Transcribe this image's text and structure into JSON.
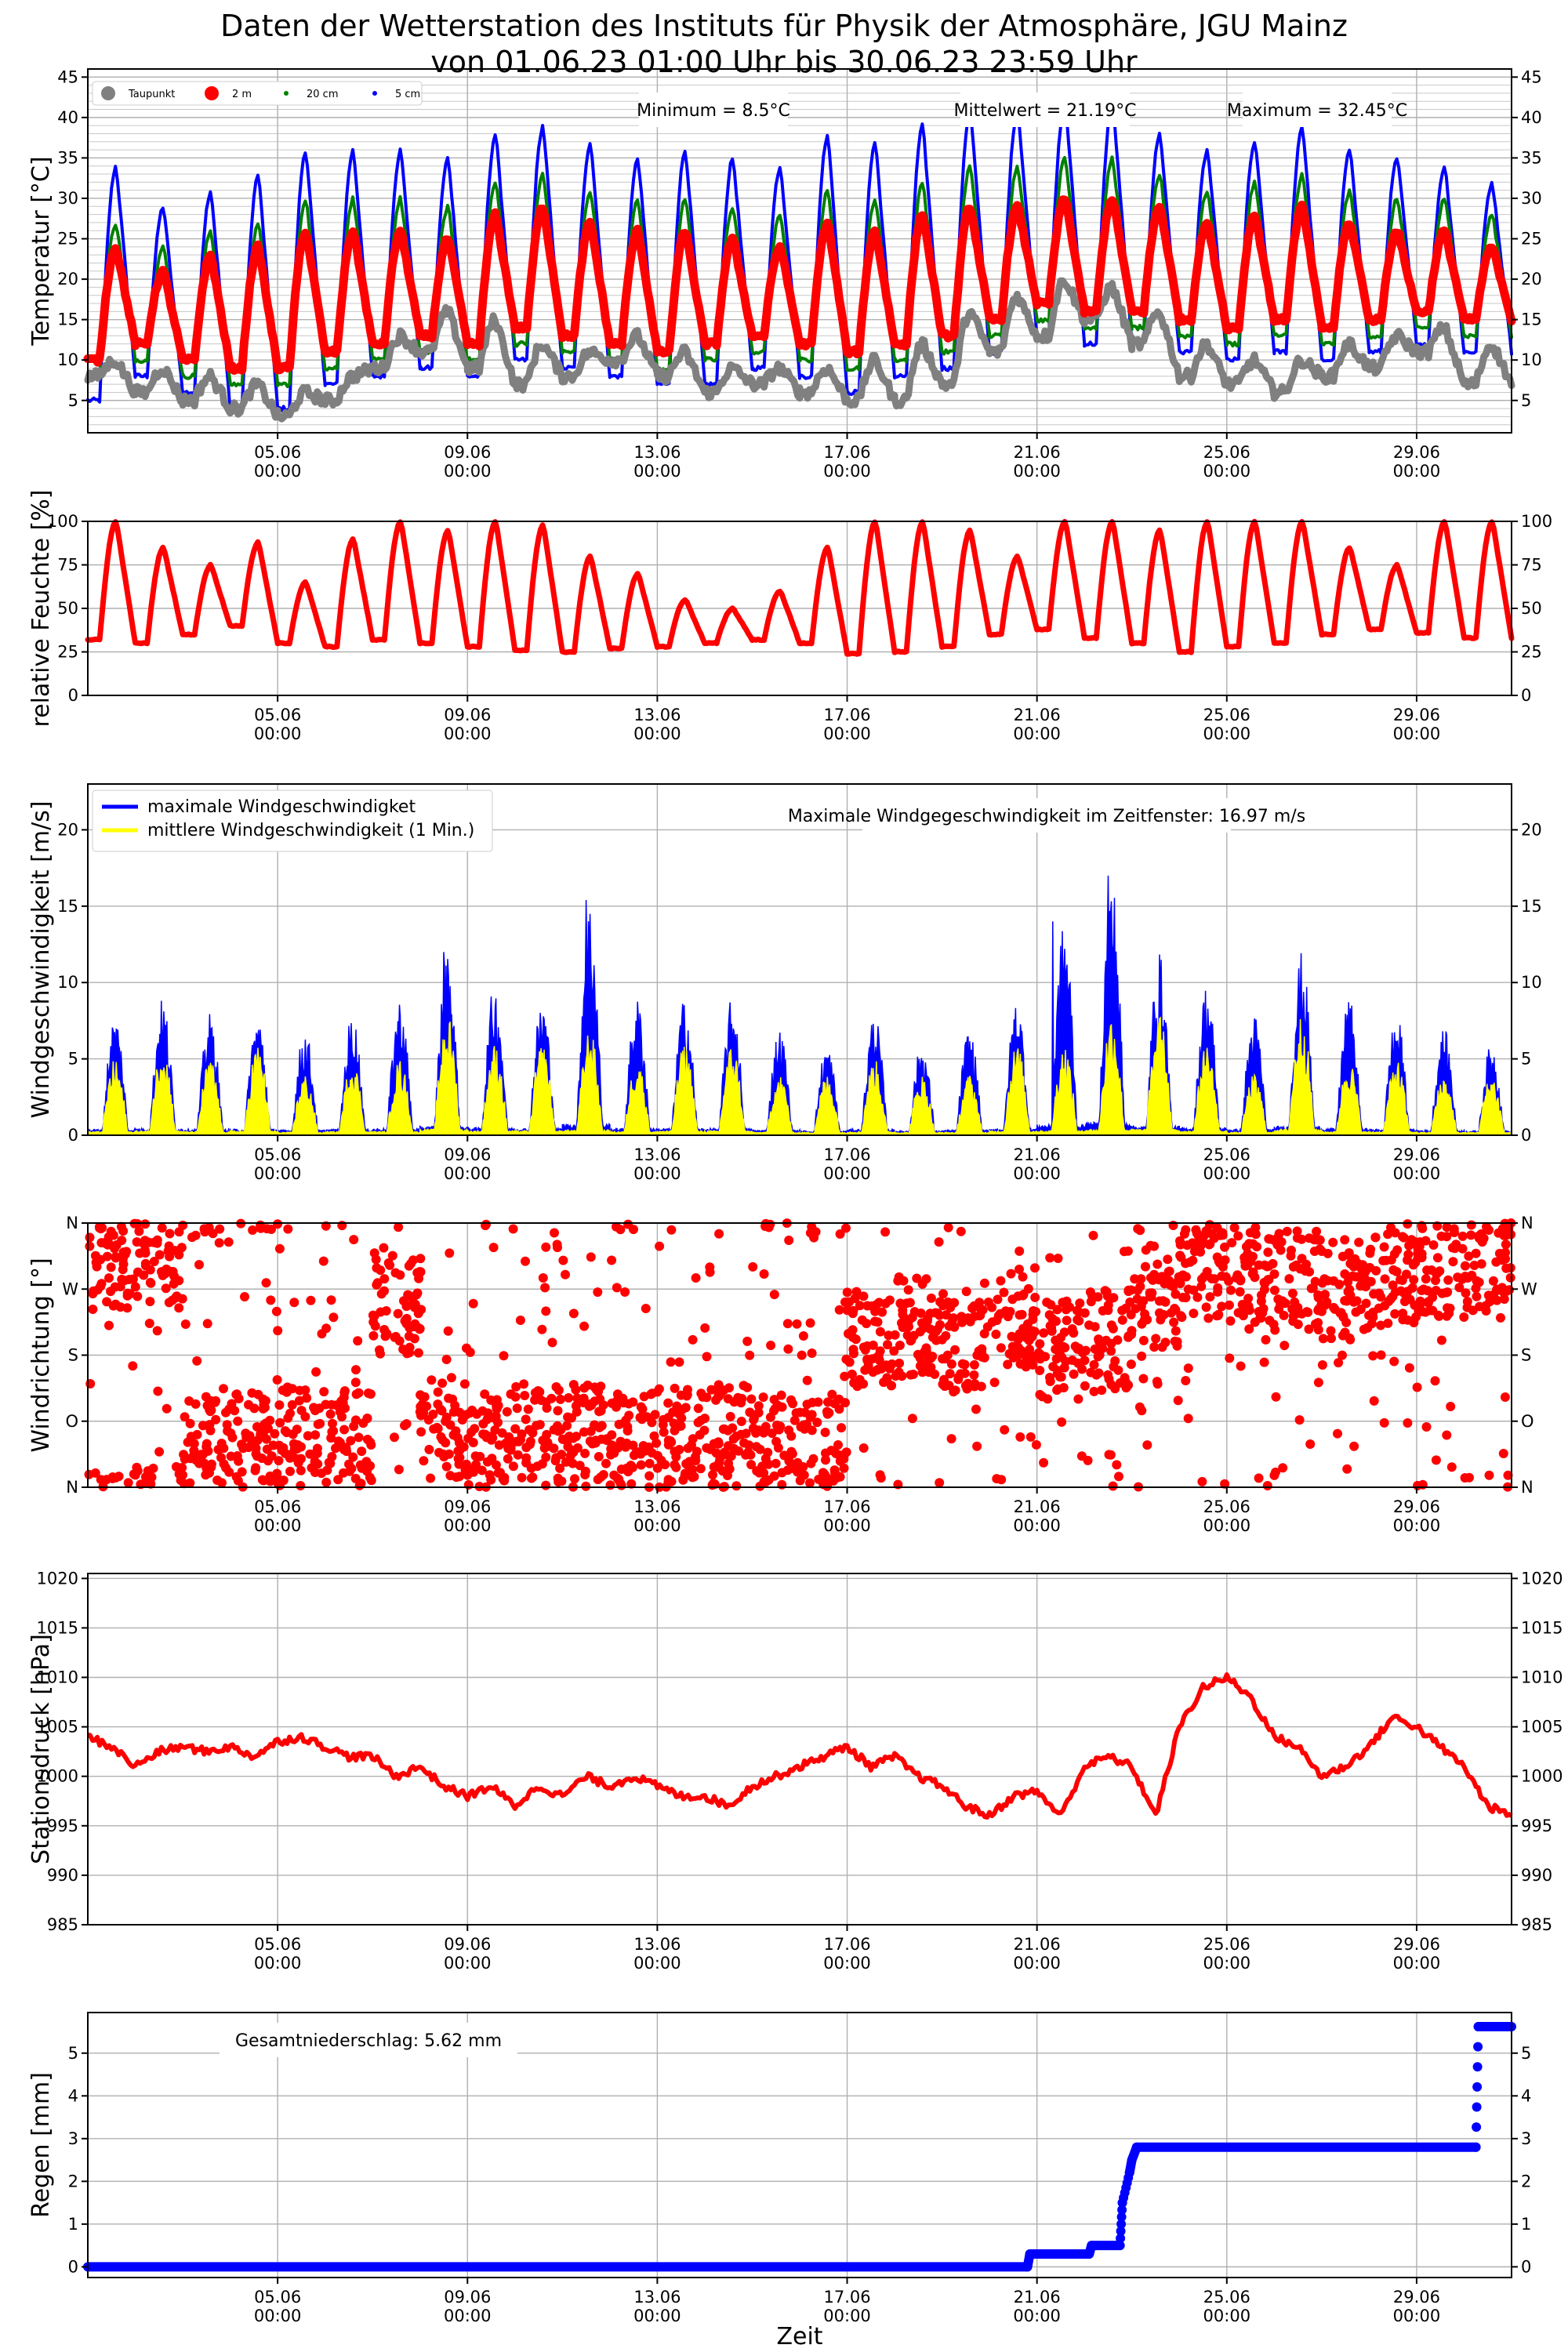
{
  "title": {
    "line1": "Daten der Wetterstation des Instituts für Physik der Atmosphäre, JGU Mainz",
    "line2": "von 01.06.23 01:00 Uhr bis 30.06.23 23:59 Uhr"
  },
  "x_axis": {
    "label": "Zeit",
    "start_day": 1,
    "end_day": 31,
    "ticks": [
      {
        "day": 5,
        "line1": "05.06",
        "line2": "00:00"
      },
      {
        "day": 9,
        "line1": "09.06",
        "line2": "00:00"
      },
      {
        "day": 13,
        "line1": "13.06",
        "line2": "00:00"
      },
      {
        "day": 17,
        "line1": "17.06",
        "line2": "00:00"
      },
      {
        "day": 21,
        "line1": "21.06",
        "line2": "00:00"
      },
      {
        "day": 25,
        "line1": "25.06",
        "line2": "00:00"
      },
      {
        "day": 29,
        "line1": "29.06",
        "line2": "00:00"
      }
    ]
  },
  "chart_data": [
    {
      "id": "temperature",
      "type": "scatter",
      "ylabel": "Temperatur [°C]",
      "ylim": [
        1,
        46
      ],
      "yticks": [
        5,
        10,
        15,
        20,
        25,
        30,
        35,
        40,
        45
      ],
      "minor_grid_step": 1,
      "legend": {
        "position": "top-left",
        "entries": [
          {
            "name": "Taupunkt",
            "color": "#808080",
            "size": "large"
          },
          {
            "name": "2 m",
            "color": "#ff0000",
            "size": "large"
          },
          {
            "name": "20 cm",
            "color": "#008000",
            "size": "small"
          },
          {
            "name": "5 cm",
            "color": "#0000ff",
            "size": "small"
          }
        ]
      },
      "annotations": [
        "Minimum = 8.5°C",
        "Mittelwert = 21.19°C",
        "Maximum = 32.45°C"
      ],
      "series": [
        {
          "name": "Taupunkt",
          "color": "#808080",
          "daily_min": [
            8,
            6,
            5,
            4,
            3,
            5,
            9,
            11,
            9,
            7,
            8,
            10,
            8,
            6,
            7,
            6,
            5,
            5,
            7,
            11,
            13,
            15,
            12,
            8,
            7,
            6,
            8,
            9,
            11,
            7
          ],
          "daily_max": [
            10,
            9,
            8,
            7,
            6,
            8,
            13,
            16,
            15,
            12,
            11,
            13,
            11,
            9,
            9,
            9,
            10,
            12,
            16,
            18,
            20,
            19,
            16,
            12,
            10,
            10,
            12,
            13,
            14,
            12
          ]
        },
        {
          "name": "2 m",
          "color": "#ff0000",
          "daily_min": [
            10,
            12,
            10,
            9,
            9,
            11,
            12,
            13,
            12,
            14,
            13,
            12,
            11,
            12,
            13,
            12,
            11,
            12,
            13,
            15,
            17,
            16,
            16,
            15,
            14,
            15,
            14,
            15,
            16,
            15
          ],
          "daily_max": [
            24,
            21,
            23,
            24,
            26,
            26,
            26,
            25,
            28,
            29,
            27,
            26,
            26,
            25,
            24,
            27,
            26,
            28,
            29,
            29,
            30,
            30,
            29,
            27,
            28,
            29,
            27,
            26,
            26,
            24
          ]
        },
        {
          "name": "20 cm",
          "color": "#008000",
          "daily_min": [
            8,
            10,
            8,
            7,
            7,
            9,
            10,
            11,
            10,
            12,
            11,
            10,
            9,
            10,
            11,
            10,
            9,
            10,
            11,
            13,
            15,
            14,
            14,
            13,
            12,
            13,
            12,
            13,
            14,
            13
          ],
          "daily_max": [
            27,
            24,
            26,
            27,
            30,
            30,
            30,
            29,
            32,
            33,
            31,
            30,
            30,
            29,
            28,
            31,
            30,
            32,
            34,
            34,
            35,
            35,
            33,
            31,
            32,
            33,
            31,
            30,
            30,
            28
          ]
        },
        {
          "name": "5 cm",
          "color": "#0000ff",
          "daily_min": [
            5,
            8,
            6,
            4,
            4,
            7,
            8,
            9,
            8,
            10,
            9,
            8,
            7,
            7,
            9,
            8,
            6,
            8,
            9,
            11,
            13,
            12,
            12,
            11,
            10,
            11,
            10,
            11,
            12,
            11
          ],
          "daily_max": [
            34,
            29,
            31,
            33,
            36,
            36,
            36,
            35,
            38,
            39,
            37,
            35,
            36,
            35,
            34,
            38,
            37,
            39,
            41,
            41,
            42,
            42,
            38,
            36,
            37,
            39,
            36,
            35,
            34,
            32
          ]
        }
      ]
    },
    {
      "id": "humidity",
      "type": "scatter",
      "ylabel": "relative Feuchte [%]",
      "ylim": [
        0,
        100
      ],
      "yticks": [
        0,
        25,
        50,
        75,
        100
      ],
      "series": [
        {
          "name": "relative Feuchte",
          "color": "#ff0000",
          "daily_min": [
            32,
            30,
            35,
            40,
            30,
            28,
            32,
            30,
            28,
            26,
            25,
            27,
            28,
            30,
            32,
            30,
            24,
            25,
            28,
            35,
            38,
            33,
            30,
            25,
            28,
            30,
            35,
            38,
            36,
            33
          ],
          "daily_max": [
            100,
            85,
            75,
            88,
            65,
            90,
            100,
            95,
            100,
            98,
            80,
            70,
            55,
            50,
            60,
            85,
            100,
            100,
            95,
            80,
            100,
            100,
            95,
            100,
            100,
            100,
            85,
            75,
            100,
            100
          ]
        }
      ]
    },
    {
      "id": "wind_speed",
      "type": "area",
      "ylabel": "Windgeschwindigkeit [m/s]",
      "ylim": [
        0,
        23
      ],
      "yticks": [
        0,
        5,
        10,
        15,
        20
      ],
      "legend": {
        "position": "top-left",
        "entries": [
          {
            "name": "maximale Windgeschwindigket",
            "color": "#0000ff"
          },
          {
            "name": "mittlere Windgeschwindigkeit (1 Min.)",
            "color": "#ffff00"
          }
        ]
      },
      "annotations": [
        "Maximale Windgegeschwindigkeit im Zeitfenster: 16.97 m/s"
      ],
      "series": [
        {
          "name": "maximale Windgeschwindigket",
          "color": "#0000ff",
          "daily_max": [
            8,
            9,
            8,
            8,
            7,
            8,
            9,
            12,
            10,
            9,
            15.4,
            9,
            9,
            9,
            7,
            6,
            8,
            6,
            7,
            9,
            14,
            17,
            12,
            10,
            8,
            12,
            9,
            8,
            7,
            6
          ]
        },
        {
          "name": "mittlere Windgeschwindigkeit (1 Min.)",
          "color": "#ffff00",
          "daily_max": [
            5,
            6,
            5,
            6,
            4,
            5,
            5,
            8,
            6,
            6,
            7,
            5,
            6,
            6,
            4,
            4,
            5,
            4,
            4,
            6,
            6,
            8,
            8,
            6,
            4,
            8,
            5,
            5,
            4,
            4
          ]
        }
      ]
    },
    {
      "id": "wind_direction",
      "type": "scatter",
      "ylabel": "Windrichtung [°]",
      "ylim": [
        0,
        360
      ],
      "ytick_labels": [
        {
          "value": 0,
          "label": "N"
        },
        {
          "value": 90,
          "label": "O"
        },
        {
          "value": 180,
          "label": "S"
        },
        {
          "value": 270,
          "label": "W"
        },
        {
          "value": 360,
          "label": "N"
        }
      ],
      "series": [
        {
          "name": "Windrichtung",
          "color": "#ff0000",
          "daily_center": [
            310,
            320,
            50,
            60,
            70,
            60,
            250,
            80,
            60,
            70,
            70,
            60,
            70,
            70,
            60,
            50,
            200,
            220,
            200,
            230,
            190,
            200,
            260,
            300,
            290,
            280,
            270,
            290,
            300,
            310
          ]
        }
      ]
    },
    {
      "id": "pressure",
      "type": "line",
      "ylabel": "Stationsdruck [hPa]",
      "ylim": [
        985,
        1020.5
      ],
      "yticks": [
        985,
        990,
        995,
        1000,
        1005,
        1010,
        1015,
        1020
      ],
      "series": [
        {
          "name": "Stationsdruck",
          "color": "#ff0000",
          "x": [
            1,
            1.5,
            2,
            2.5,
            3,
            3.5,
            4,
            4.5,
            5,
            5.5,
            6,
            6.5,
            7,
            7.5,
            8,
            8.5,
            9,
            9.5,
            10,
            10.5,
            11,
            11.5,
            12,
            12.5,
            13,
            13.5,
            14,
            14.5,
            15,
            15.5,
            16,
            16.5,
            17,
            17.5,
            18,
            18.5,
            19,
            19.5,
            20,
            20.5,
            21,
            21.5,
            22,
            22.5,
            23,
            23.5,
            24,
            24.5,
            25,
            25.5,
            26,
            26.5,
            27,
            27.5,
            28,
            28.5,
            29,
            29.5,
            30,
            30.5,
            31
          ],
          "y": [
            1004,
            1003,
            1001,
            1002.5,
            1003,
            1002.5,
            1003,
            1002,
            1003.5,
            1004,
            1003,
            1002,
            1002,
            1000,
            1001,
            999,
            998,
            999,
            997,
            999,
            998,
            1000,
            999,
            1000,
            999,
            998,
            998,
            997,
            999,
            1000,
            1001,
            1002,
            1003,
            1001,
            1002,
            1000,
            999,
            997,
            996,
            998,
            998.5,
            996,
            1001,
            1002,
            1001,
            996,
            1005,
            1009,
            1010,
            1008,
            1004,
            1003,
            1000,
            1001,
            1003,
            1006,
            1005,
            1003,
            1001,
            997,
            996
          ]
        }
      ]
    },
    {
      "id": "rain",
      "type": "scatter",
      "ylabel": "Regen [mm]",
      "ylim": [
        -0.25,
        5.95
      ],
      "yticks": [
        0,
        1,
        2,
        3,
        4,
        5
      ],
      "annotations": [
        "Gesamtniederschlag: 5.62 mm"
      ],
      "series": [
        {
          "name": "Regen",
          "color": "#0000ff",
          "x": [
            1,
            20.8,
            20.85,
            22.1,
            22.15,
            22.75,
            22.8,
            22.95,
            23.0,
            23.1,
            30.25,
            30.3,
            31
          ],
          "y": [
            0,
            0,
            0.3,
            0.3,
            0.5,
            0.5,
            1.5,
            2.2,
            2.5,
            2.8,
            2.8,
            5.62,
            5.62
          ]
        }
      ]
    }
  ]
}
